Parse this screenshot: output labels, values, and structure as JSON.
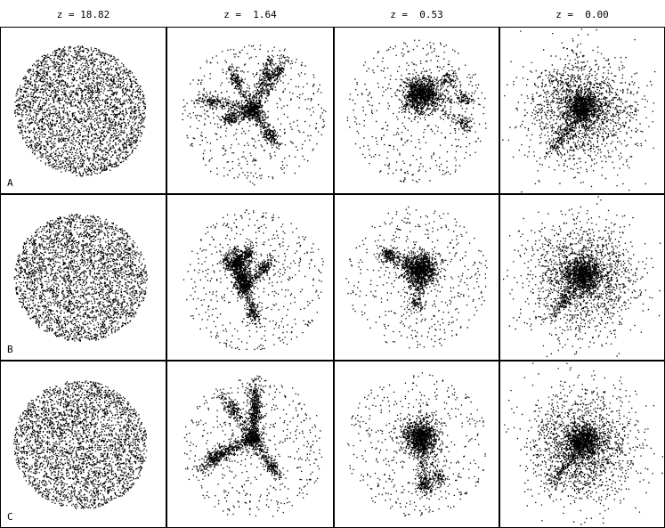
{
  "header": {
    "columns": [
      "z = 18.82",
      "z =  1.64",
      "z =  0.53",
      "z =  0.00"
    ]
  },
  "rows": [
    "A",
    "B",
    "C"
  ]
}
